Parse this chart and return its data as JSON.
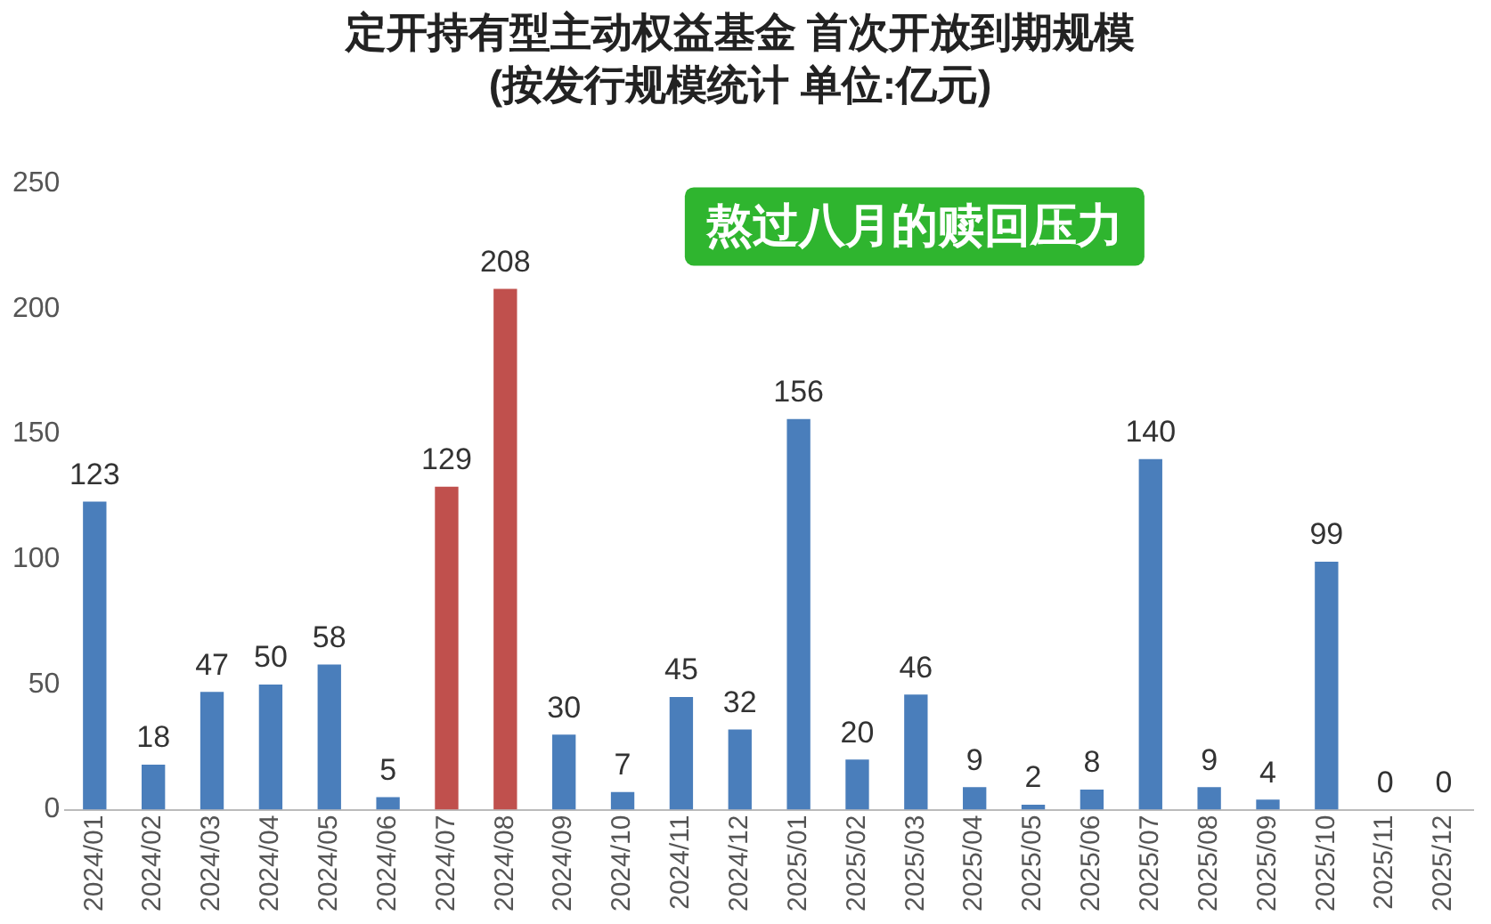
{
  "chart_data": {
    "type": "bar",
    "title": "定开持有型主动权益基金 首次开放到期规模",
    "subtitle": "(按发行规模统计 单位:亿元)",
    "categories": [
      "2024/01",
      "2024/02",
      "2024/03",
      "2024/04",
      "2024/05",
      "2024/06",
      "2024/07",
      "2024/08",
      "2024/09",
      "2024/10",
      "2024/11",
      "2024/12",
      "2025/01",
      "2025/02",
      "2025/03",
      "2025/04",
      "2025/05",
      "2025/06",
      "2025/07",
      "2025/08",
      "2025/09",
      "2025/10",
      "2025/11",
      "2025/12"
    ],
    "values": [
      123,
      18,
      47,
      50,
      58,
      5,
      129,
      208,
      30,
      7,
      45,
      32,
      156,
      20,
      46,
      9,
      2,
      8,
      140,
      9,
      4,
      99,
      0,
      0
    ],
    "colors": [
      "#4a7ebb",
      "#4a7ebb",
      "#4a7ebb",
      "#4a7ebb",
      "#4a7ebb",
      "#4a7ebb",
      "#c0504d",
      "#c0504d",
      "#4a7ebb",
      "#4a7ebb",
      "#4a7ebb",
      "#4a7ebb",
      "#4a7ebb",
      "#4a7ebb",
      "#4a7ebb",
      "#4a7ebb",
      "#4a7ebb",
      "#4a7ebb",
      "#4a7ebb",
      "#4a7ebb",
      "#4a7ebb",
      "#4a7ebb",
      "#4a7ebb",
      "#4a7ebb"
    ],
    "ylim": [
      0,
      250
    ],
    "yticks": [
      0,
      50,
      100,
      150,
      200,
      250
    ],
    "grid": false,
    "data_labels": true,
    "annotations": [
      "熬过八月的赎回压力"
    ]
  }
}
